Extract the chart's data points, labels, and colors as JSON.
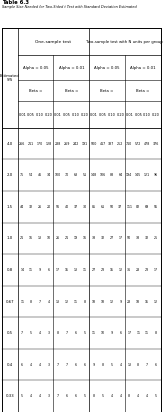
{
  "title": "Table 6.3",
  "subtitle": "Sample Size Needed for Two-Sided t Test with Standard Deviation Estimated",
  "estimated_ss": [
    "4.0",
    "2.0",
    "1.5",
    "1.0",
    "0.8",
    "0.67",
    "0.5",
    "0.4",
    "0.33"
  ],
  "data": {
    "one_sample_alpha005": {
      "beta001": [
        266,
        75,
        44,
        21,
        14,
        11,
        7,
        6,
        5
      ],
      "beta005": [
        211,
        54,
        32,
        16,
        11,
        8,
        5,
        4,
        4
      ],
      "beta010": [
        170,
        46,
        26,
        13,
        9,
        7,
        4,
        4,
        4
      ],
      "beta020": [
        128,
        34,
        20,
        10,
        6,
        4,
        3,
        3,
        3
      ]
    },
    "one_sample_alpha001": {
      "beta001": [
        288,
        100,
        56,
        26,
        17,
        13,
        8,
        7,
        7
      ],
      "beta005": [
        269,
        70,
        40,
        21,
        15,
        12,
        7,
        7,
        6
      ],
      "beta010": [
        242,
        63,
        37,
        19,
        13,
        11,
        6,
        6,
        6
      ],
      "beta020": [
        191,
        51,
        30,
        16,
        11,
        8,
        5,
        6,
        5
      ]
    },
    "two_sample_alpha005": {
      "beta001": [
        500,
        148,
        85,
        38,
        27,
        18,
        11,
        9,
        8
      ],
      "beta005": [
        417,
        106,
        61,
        32,
        23,
        18,
        10,
        8,
        5
      ],
      "beta010": [
        337,
        88,
        50,
        27,
        15,
        12,
        9,
        5,
        4
      ],
      "beta020": [
        252,
        64,
        37,
        17,
        12,
        9,
        6,
        4,
        4
      ]
    },
    "two_sample_alpha001": {
      "beta001": [
        710,
        194,
        111,
        50,
        36,
        28,
        17,
        13,
        8
      ],
      "beta005": [
        572,
        145,
        82,
        38,
        28,
        18,
        11,
        8,
        4
      ],
      "beta010": [
        478,
        121,
        69,
        32,
        23,
        15,
        11,
        7,
        4
      ],
      "beta020": [
        376,
        96,
        55,
        25,
        17,
        12,
        8,
        6,
        5
      ]
    }
  },
  "bg_color": "#ffffff",
  "text_color": "#000000"
}
